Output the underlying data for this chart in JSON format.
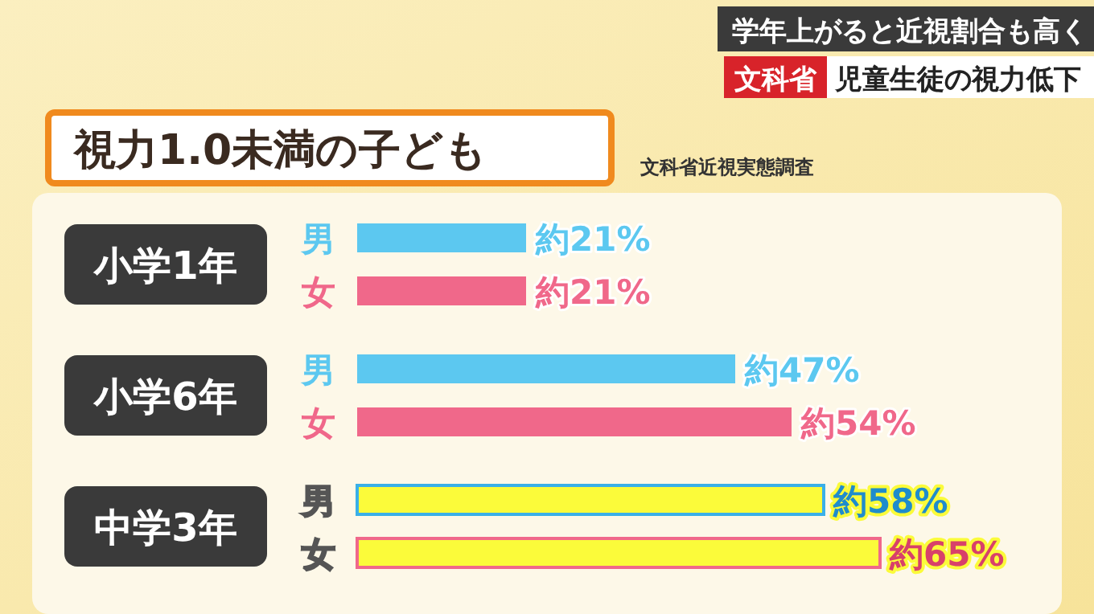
{
  "chart_data": {
    "type": "bar",
    "orientation": "horizontal",
    "title": "視力1.0未満の子ども",
    "subtitle": "文科省近視実態調査",
    "categories": [
      "男",
      "女",
      "男",
      "女",
      "男",
      "女"
    ],
    "values": [
      21,
      21,
      47,
      54,
      58,
      65
    ],
    "value_labels": [
      "約21%",
      "約21%",
      "約47%",
      "約54%",
      "約58%",
      "約65%"
    ],
    "colors": [
      "#5cc8f0",
      "#f0688a",
      "#5cc8f0",
      "#f0688a",
      "#fbfb3a",
      "#fbfb3a"
    ],
    "annotations": [
      "小学1年",
      "小学6年",
      "中学3年",
      "学年上がると近視割合も高く",
      "文科省",
      "児童生徒の視力低下"
    ]
  }
}
